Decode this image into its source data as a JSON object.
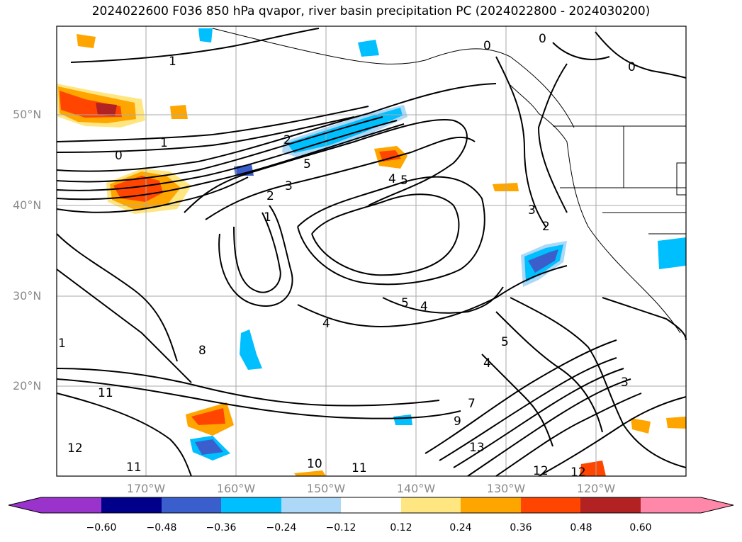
{
  "title": "2024022600 F036 850 hPa qvapor, river basin precipitation PC (2024022800 - 2024030200)",
  "latitudes": [
    "50°N",
    "40°N",
    "30°N",
    "20°N"
  ],
  "longitudes": [
    "170°W",
    "160°W",
    "150°W",
    "140°W",
    "130°W",
    "120°W"
  ],
  "colorbar": {
    "ticks": [
      "−0.60",
      "−0.48",
      "−0.36",
      "−0.24",
      "−0.12",
      "0.12",
      "0.24",
      "0.36",
      "0.48",
      "0.60"
    ],
    "colors": [
      "#9933cc",
      "#00008b",
      "#3a5fcd",
      "#00bfff",
      "#add8f7",
      "#ffffff",
      "#ffe680",
      "#ffa500",
      "#ff4500",
      "#b22222",
      "#ff88aa"
    ]
  },
  "contour_labels": [
    "1",
    "0",
    "0",
    "1",
    "2",
    "5",
    "3",
    "2",
    "1",
    "4",
    "5",
    "3",
    "2",
    "5",
    "4",
    "4",
    "5",
    "4",
    "8",
    "11",
    "12",
    "11",
    "10",
    "11",
    "13",
    "12",
    "12",
    "9",
    "7",
    "3",
    "0",
    "0",
    "1"
  ]
}
